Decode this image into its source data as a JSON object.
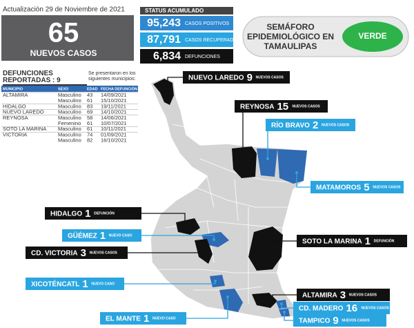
{
  "header": {
    "update": "Actualización 29 de Noviembre de 2021",
    "new_cases": "65",
    "new_cases_label": "NUEVOS CASOS"
  },
  "status": {
    "title": "STATUS ACUMULADO",
    "rows": [
      {
        "value": "95,243",
        "label": "CASOS POSITIVOS"
      },
      {
        "value": "87,791",
        "label": "CASOS RECUPERADOS"
      },
      {
        "value": "6,834",
        "label": "DEFUNCIONES"
      }
    ]
  },
  "semaforo": {
    "title": "SEMÁFORO EPIDEMIOLÓGICO EN TAMAULIPAS",
    "status": "VERDE"
  },
  "deaths": {
    "title": "DEFUNCIONES REPORTADAS : 9",
    "note": "Se presentaron en los siguientes municipios:",
    "columns": [
      "MUNICIPIO",
      "SEXO",
      "EDAD",
      "FECHA DEFUNCIÓN"
    ],
    "rows": [
      [
        "ALTAMIRA",
        "Masculino",
        "43",
        "14/09/2021"
      ],
      [
        null,
        "Masculino",
        "61",
        "15/10/2021"
      ],
      [
        "HIDALGO",
        "Masculino",
        "83",
        "19/11/2021"
      ],
      [
        "NUEVO LAREDO",
        "Masculino",
        "69",
        "14/10/2021"
      ],
      [
        "REYNOSA",
        "Masculino",
        "58",
        "14/06/2021"
      ],
      [
        null,
        "Femenino",
        "61",
        "10/07/2021"
      ],
      [
        "SOTO LA MARINA",
        "Masculino",
        "61",
        "10/11/2021"
      ],
      [
        "VICTORIA",
        "Masculino",
        "74",
        "01/09/2021"
      ],
      [
        null,
        "Masculino",
        "82",
        "16/10/2021"
      ]
    ]
  },
  "map": {
    "labels": [
      {
        "name": "NUEVO LAREDO",
        "count": 9,
        "unit": "NUEVOS CASOS",
        "style": "dark"
      },
      {
        "name": "REYNOSA",
        "count": 15,
        "unit": "NUEVOS CASOS",
        "style": "dark"
      },
      {
        "name": "RÍO BRAVO",
        "count": 2,
        "unit": "NUEVOS CASOS",
        "style": "blue"
      },
      {
        "name": "MATAMOROS",
        "count": 5,
        "unit": "NUEVOS CASOS",
        "style": "blue"
      },
      {
        "name": "HIDALGO",
        "count": 1,
        "unit": "DEFUNCIÓN",
        "style": "dark"
      },
      {
        "name": "GÜÉMEZ",
        "count": 1,
        "unit": "NUEVO CASO",
        "style": "blue"
      },
      {
        "name": "CD. VICTORIA",
        "count": 3,
        "unit": "NUEVOS CASOS",
        "style": "dark"
      },
      {
        "name": "SOTO LA MARINA",
        "count": 1,
        "unit": "DEFUNCIÓN",
        "style": "dark"
      },
      {
        "name": "XICOTÉNCATL",
        "count": 1,
        "unit": "NUEVO CASO",
        "style": "blue"
      },
      {
        "name": "ALTAMIRA",
        "count": 3,
        "unit": "NUEVOS CASOS",
        "style": "dark"
      },
      {
        "name": "CD. MADERO",
        "count": 16,
        "unit": "NUEVOS CASOS",
        "style": "blue"
      },
      {
        "name": "EL MANTE",
        "count": 1,
        "unit": "NUEVO CASO",
        "style": "blue"
      },
      {
        "name": "TAMPICO",
        "count": 9,
        "unit": "NUEVOS CASOS",
        "style": "blue"
      }
    ]
  }
}
